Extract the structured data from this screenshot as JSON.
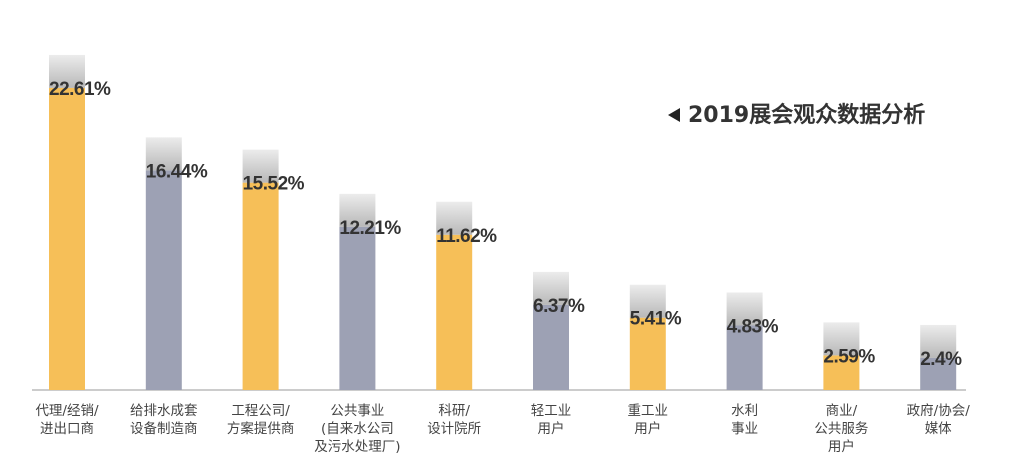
{
  "chart_data": {
    "type": "bar",
    "title": "2019展会观众数据分析",
    "categories": [
      [
        "代理/经销/",
        "进出口商"
      ],
      [
        "给排水成套",
        "设备制造商"
      ],
      [
        "工程公司/",
        "方案提供商"
      ],
      [
        "公共事业",
        "(自来水公司",
        "及污水处理厂)"
      ],
      [
        "科研/",
        "设计院所"
      ],
      [
        "轻工业",
        "用户"
      ],
      [
        "重工业",
        "用户"
      ],
      [
        "水利",
        "事业"
      ],
      [
        "商业/",
        "公共服务",
        "用户"
      ],
      [
        "政府/协会/",
        "媒体"
      ]
    ],
    "values": [
      22.61,
      16.44,
      15.52,
      12.21,
      11.62,
      6.37,
      5.41,
      4.83,
      2.59,
      2.4
    ],
    "value_labels": [
      "22.61%",
      "16.44%",
      "15.52%",
      "12.21%",
      "11.62%",
      "6.37%",
      "5.41%",
      "4.83%",
      "2.59%",
      "2.4%"
    ],
    "colors": [
      "#f6bf58",
      "#9da1b4",
      "#f6bf58",
      "#9da1b4",
      "#f6bf58",
      "#9da1b4",
      "#f6bf58",
      "#9da1b4",
      "#f6bf58",
      "#9da1b4"
    ]
  }
}
